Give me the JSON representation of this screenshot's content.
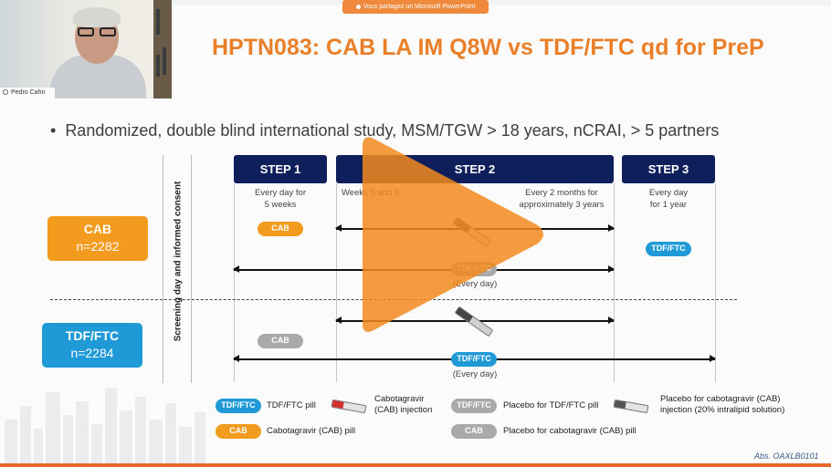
{
  "banner": {
    "text": "Vous partagez un Microsoft PowerPoint"
  },
  "webcam": {
    "name": "Pedro Cahn"
  },
  "slide": {
    "title": "HPTN083: CAB LA IM Q8W vs TDF/FTC qd for PreP",
    "bullet": "Randomized, double blind international study, MSM/TGW > 18 years, nCRAI, > 5 partners",
    "screening": "Screening day and informed consent",
    "steps": [
      {
        "label": "STEP 1",
        "note": "Every day for\n5 weeks"
      },
      {
        "label": "STEP 2",
        "note_left": "Weeks 5 and 9",
        "note_right": "Every 2 months for\napproximately 3 years"
      },
      {
        "label": "STEP 3",
        "note": "Every day\nfor 1 year"
      }
    ],
    "arms": [
      {
        "name": "CAB",
        "n": "n=2282",
        "color": "#f29b1e"
      },
      {
        "name": "TDF/FTC",
        "n": "n=2284",
        "color": "#1f9ad6"
      }
    ],
    "pills": {
      "cab": "CAB",
      "tdf": "TDF/FTC",
      "every_day": "(Every day)"
    },
    "legend": [
      {
        "tag": "TDF/FTC",
        "text": "TDF/FTC pill"
      },
      {
        "text": "Cabotagravir\n(CAB) injection"
      },
      {
        "tag": "TDF/FTC",
        "text": "Placebo for TDF/FTC pill"
      },
      {
        "text": "Placebo for cabotagravir (CAB)\ninjection (20% intralipid solution)"
      },
      {
        "tag": "CAB",
        "text": "Cabotagravir (CAB) pill"
      },
      {
        "tag": "CAB",
        "text": "Placebo for cabotagravir (CAB) pill"
      }
    ],
    "abstract": "Abs. OAXLB0101",
    "colors": {
      "orange": "#f29b1e",
      "blue": "#1f9ad6",
      "gray": "#a9a9a9",
      "navy": "#0e1f5b",
      "title": "#ea7f2a"
    }
  }
}
